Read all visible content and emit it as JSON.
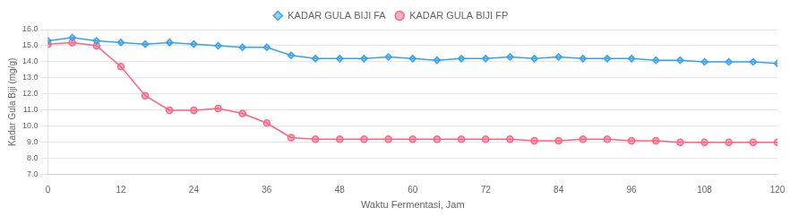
{
  "chart_data": {
    "type": "line",
    "xlabel": "Waktu Fermentasi, Jam",
    "ylabel": "Kadar Gula Biji (mg/g)",
    "x": [
      0,
      4,
      8,
      12,
      16,
      20,
      24,
      28,
      32,
      36,
      40,
      44,
      48,
      52,
      56,
      60,
      64,
      68,
      72,
      76,
      80,
      84,
      88,
      92,
      96,
      100,
      104,
      108,
      112,
      116,
      120
    ],
    "series": [
      {
        "name": "KADAR GULA BIJI FA",
        "marker": "diamond",
        "values": [
          15.3,
          15.5,
          15.3,
          15.2,
          15.1,
          15.2,
          15.1,
          15.0,
          14.9,
          14.9,
          14.4,
          14.2,
          14.2,
          14.2,
          14.3,
          14.2,
          14.1,
          14.2,
          14.2,
          14.3,
          14.2,
          14.3,
          14.2,
          14.2,
          14.2,
          14.1,
          14.1,
          14.0,
          14.0,
          14.0,
          13.9
        ]
      },
      {
        "name": "KADAR GULA BIJI FP",
        "marker": "circle",
        "values": [
          15.1,
          15.2,
          15.0,
          13.7,
          11.9,
          11.0,
          11.0,
          11.1,
          10.8,
          10.2,
          9.3,
          9.2,
          9.2,
          9.2,
          9.2,
          9.2,
          9.2,
          9.2,
          9.2,
          9.2,
          9.1,
          9.1,
          9.2,
          9.2,
          9.1,
          9.1,
          9.0,
          9.0,
          9.0,
          9.0,
          9.0
        ]
      }
    ],
    "xlim": [
      0,
      120
    ],
    "ylim": [
      7.0,
      16.0
    ],
    "xticks": [
      0,
      12,
      24,
      36,
      48,
      60,
      72,
      84,
      96,
      108,
      120
    ],
    "yticks": [
      {
        "value": 7.0,
        "label": "7.0"
      },
      {
        "value": 8.0,
        "label": "8.0"
      },
      {
        "value": 9.0,
        "label": "9.0"
      },
      {
        "value": 10.0,
        "label": "10.0"
      },
      {
        "value": 11.0,
        "label": "11.0"
      },
      {
        "value": 12.0,
        "label": "12.0"
      },
      {
        "value": 13.0,
        "label": "13.0"
      },
      {
        "value": 14.0,
        "label": "14.0"
      },
      {
        "value": 15.0,
        "label": "15.0"
      },
      {
        "value": 16.0,
        "label": "16.0"
      }
    ],
    "grid": "y",
    "legend": "top"
  }
}
